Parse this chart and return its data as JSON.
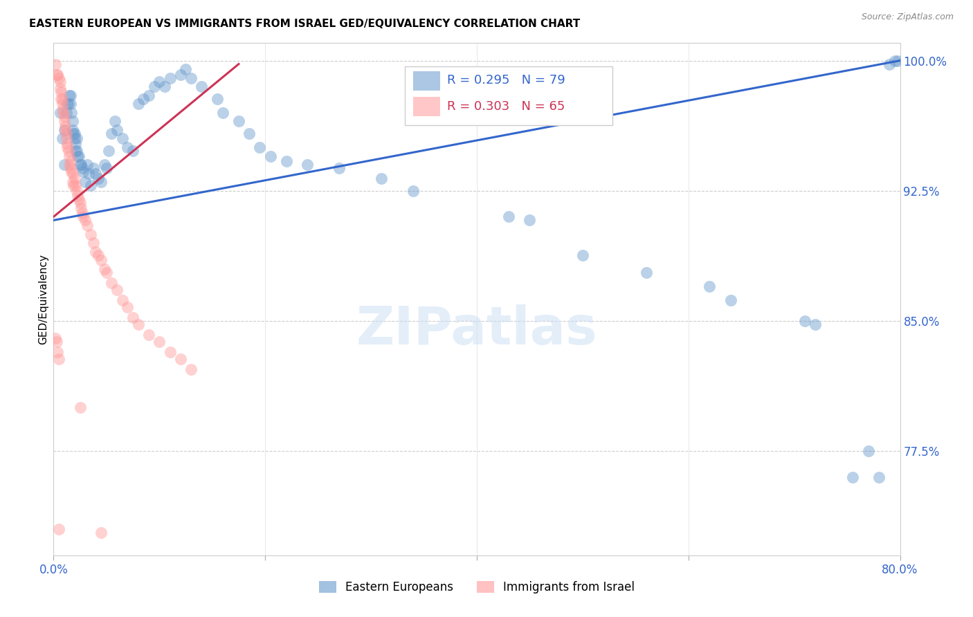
{
  "title": "EASTERN EUROPEAN VS IMMIGRANTS FROM ISRAEL GED/EQUIVALENCY CORRELATION CHART",
  "source": "Source: ZipAtlas.com",
  "ylabel": "GED/Equivalency",
  "blue_label": "Eastern Europeans",
  "pink_label": "Immigrants from Israel",
  "blue_R": 0.295,
  "blue_N": 79,
  "pink_R": 0.303,
  "pink_N": 65,
  "xlim": [
    0.0,
    0.8
  ],
  "ylim": [
    0.715,
    1.01
  ],
  "right_yticks": [
    1.0,
    0.925,
    0.85,
    0.775
  ],
  "right_yticklabels": [
    "100.0%",
    "92.5%",
    "85.0%",
    "77.5%"
  ],
  "grid_color": "#cccccc",
  "background_color": "#ffffff",
  "blue_color": "#6699cc",
  "pink_color": "#ff9999",
  "blue_line_color": "#3366cc",
  "pink_line_color": "#cc3355",
  "title_fontsize": 11,
  "axis_label_color": "#3366cc",
  "watermark": "ZIPatlas",
  "blue_scatter_x": [
    0.006,
    0.008,
    0.01,
    0.01,
    0.012,
    0.013,
    0.014,
    0.015,
    0.016,
    0.016,
    0.017,
    0.018,
    0.018,
    0.019,
    0.02,
    0.02,
    0.021,
    0.021,
    0.022,
    0.022,
    0.023,
    0.024,
    0.025,
    0.026,
    0.027,
    0.028,
    0.03,
    0.032,
    0.033,
    0.035,
    0.038,
    0.04,
    0.042,
    0.045,
    0.048,
    0.05,
    0.052,
    0.055,
    0.058,
    0.06,
    0.065,
    0.07,
    0.075,
    0.08,
    0.085,
    0.09,
    0.095,
    0.1,
    0.105,
    0.11,
    0.12,
    0.125,
    0.13,
    0.14,
    0.155,
    0.16,
    0.175,
    0.185,
    0.195,
    0.205,
    0.22,
    0.24,
    0.27,
    0.31,
    0.34,
    0.43,
    0.45,
    0.5,
    0.56,
    0.62,
    0.64,
    0.71,
    0.72,
    0.755,
    0.77,
    0.78,
    0.79,
    0.795,
    0.798
  ],
  "blue_scatter_y": [
    0.97,
    0.955,
    0.96,
    0.94,
    0.97,
    0.975,
    0.975,
    0.98,
    0.98,
    0.975,
    0.97,
    0.965,
    0.96,
    0.958,
    0.958,
    0.955,
    0.952,
    0.948,
    0.955,
    0.948,
    0.945,
    0.945,
    0.94,
    0.94,
    0.938,
    0.936,
    0.93,
    0.94,
    0.935,
    0.928,
    0.938,
    0.935,
    0.932,
    0.93,
    0.94,
    0.938,
    0.948,
    0.958,
    0.965,
    0.96,
    0.955,
    0.95,
    0.948,
    0.975,
    0.978,
    0.98,
    0.985,
    0.988,
    0.985,
    0.99,
    0.992,
    0.995,
    0.99,
    0.985,
    0.978,
    0.97,
    0.965,
    0.958,
    0.95,
    0.945,
    0.942,
    0.94,
    0.938,
    0.932,
    0.925,
    0.91,
    0.908,
    0.888,
    0.878,
    0.87,
    0.862,
    0.85,
    0.848,
    0.76,
    0.775,
    0.76,
    0.998,
    1.0,
    1.0
  ],
  "pink_scatter_x": [
    0.002,
    0.003,
    0.004,
    0.005,
    0.006,
    0.006,
    0.007,
    0.007,
    0.008,
    0.008,
    0.009,
    0.009,
    0.01,
    0.01,
    0.011,
    0.011,
    0.012,
    0.012,
    0.013,
    0.013,
    0.014,
    0.015,
    0.015,
    0.016,
    0.016,
    0.017,
    0.018,
    0.018,
    0.019,
    0.02,
    0.021,
    0.022,
    0.023,
    0.024,
    0.025,
    0.026,
    0.027,
    0.028,
    0.03,
    0.032,
    0.035,
    0.038,
    0.04,
    0.042,
    0.045,
    0.048,
    0.05,
    0.055,
    0.06,
    0.065,
    0.07,
    0.075,
    0.08,
    0.09,
    0.1,
    0.11,
    0.12,
    0.13,
    0.002,
    0.003,
    0.004,
    0.005,
    0.025,
    0.005,
    0.045
  ],
  "pink_scatter_y": [
    0.998,
    0.992,
    0.992,
    0.99,
    0.988,
    0.984,
    0.982,
    0.978,
    0.978,
    0.975,
    0.972,
    0.97,
    0.968,
    0.965,
    0.962,
    0.96,
    0.958,
    0.955,
    0.952,
    0.95,
    0.948,
    0.945,
    0.94,
    0.942,
    0.938,
    0.936,
    0.935,
    0.93,
    0.928,
    0.932,
    0.928,
    0.925,
    0.922,
    0.92,
    0.918,
    0.915,
    0.912,
    0.91,
    0.908,
    0.905,
    0.9,
    0.895,
    0.89,
    0.888,
    0.885,
    0.88,
    0.878,
    0.872,
    0.868,
    0.862,
    0.858,
    0.852,
    0.848,
    0.842,
    0.838,
    0.832,
    0.828,
    0.822,
    0.84,
    0.838,
    0.832,
    0.828,
    0.8,
    0.73,
    0.728
  ],
  "blue_trendline_x": [
    0.0,
    0.8
  ],
  "blue_trendline_y": [
    0.908,
    1.0
  ],
  "pink_trendline_x": [
    0.0,
    0.175
  ],
  "pink_trendline_y": [
    0.91,
    0.998
  ]
}
